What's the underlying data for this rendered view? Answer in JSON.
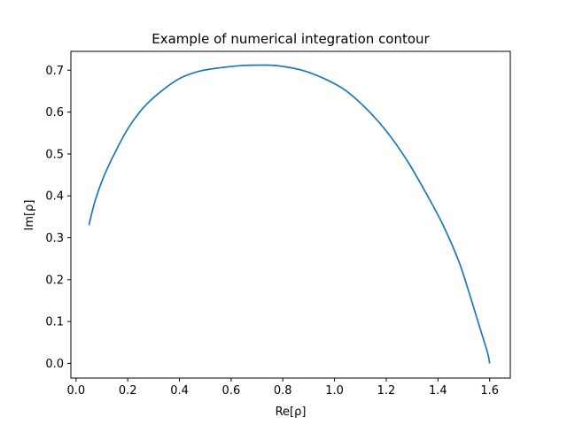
{
  "chart_data": {
    "type": "line",
    "title": "Example of numerical integration contour",
    "xlabel": "Re[ρ]",
    "ylabel": "Im[ρ]",
    "xlim": [
      -0.02,
      1.68
    ],
    "ylim": [
      -0.035,
      0.745
    ],
    "xticks": [
      0.0,
      0.2,
      0.4,
      0.6,
      0.8,
      1.0,
      1.2,
      1.4,
      1.6
    ],
    "xtick_labels": [
      "0.0",
      "0.2",
      "0.4",
      "0.6",
      "0.8",
      "1.0",
      "1.2",
      "1.4",
      "1.6"
    ],
    "yticks": [
      0.0,
      0.1,
      0.2,
      0.3,
      0.4,
      0.5,
      0.6,
      0.7
    ],
    "ytick_labels": [
      "0.0",
      "0.1",
      "0.2",
      "0.3",
      "0.4",
      "0.5",
      "0.6",
      "0.7"
    ],
    "grid": false,
    "legend": "none",
    "series": [
      {
        "color": "#1f77b4",
        "x": [
          0.05,
          0.07,
          0.1,
          0.14,
          0.2,
          0.26,
          0.32,
          0.4,
          0.48,
          0.56,
          0.64,
          0.7,
          0.75,
          0.8,
          0.88,
          0.96,
          1.04,
          1.12,
          1.2,
          1.28,
          1.36,
          1.42,
          1.48,
          1.52,
          1.55,
          1.575,
          1.59,
          1.597,
          1.6
        ],
        "y": [
          0.33,
          0.38,
          0.435,
          0.49,
          0.56,
          0.61,
          0.645,
          0.68,
          0.698,
          0.706,
          0.711,
          0.712,
          0.712,
          0.709,
          0.699,
          0.68,
          0.653,
          0.61,
          0.555,
          0.485,
          0.4,
          0.33,
          0.245,
          0.17,
          0.11,
          0.06,
          0.03,
          0.012,
          0.0
        ]
      }
    ]
  }
}
